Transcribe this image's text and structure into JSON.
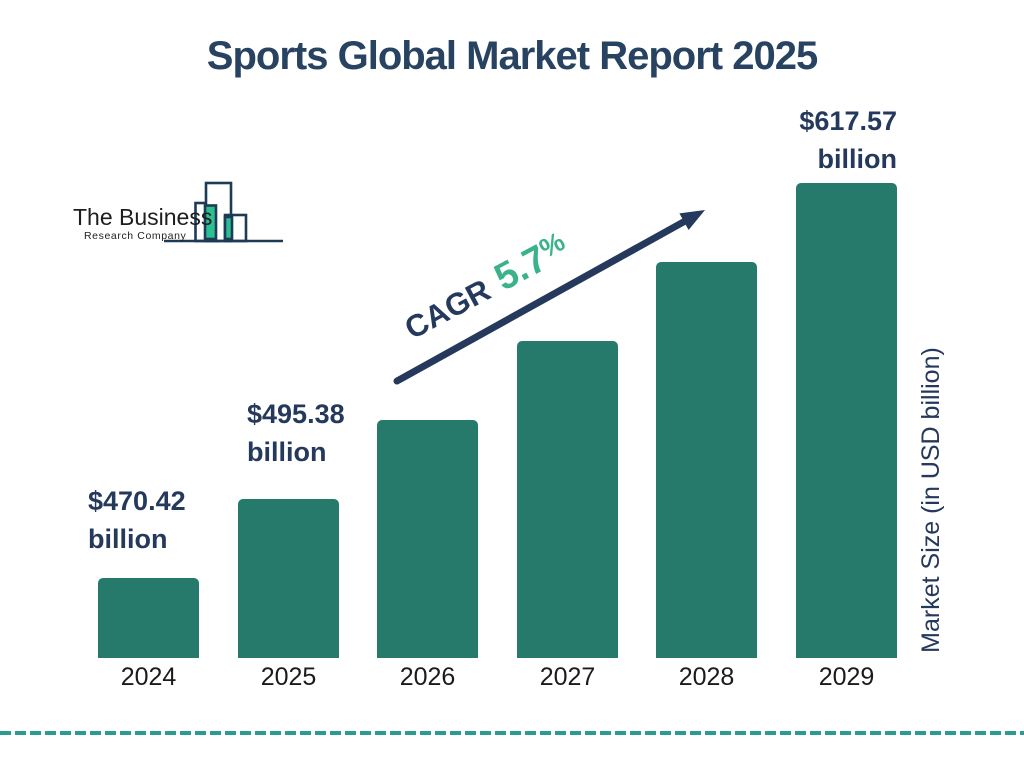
{
  "title": "Sports Global Market Report 2025",
  "logo": {
    "line1": "The Business",
    "line2": "Research Company"
  },
  "cagr": {
    "label": "CAGR",
    "value": "5.7",
    "suffix": "%"
  },
  "y_axis_label": "Market Size (in USD billion)",
  "value_labels": {
    "y2024": {
      "value": "$470.42",
      "unit": "billion"
    },
    "y2025": {
      "value": "$495.38",
      "unit": "billion"
    },
    "y2029": {
      "value": "$617.57",
      "unit": "billion"
    }
  },
  "colors": {
    "bar": "#267a6b",
    "navy_text": "#24395b",
    "title_navy": "#274361",
    "green_accent": "#3ab38b",
    "logo_green": "#2bc093",
    "dashed_rule_teal": "#2a9a93"
  },
  "chart_data": {
    "type": "bar",
    "categories": [
      "2024",
      "2025",
      "2026",
      "2027",
      "2028",
      "2029"
    ],
    "values": [
      470.42,
      495.38,
      523.62,
      553.46,
      585.01,
      617.57
    ],
    "labeled_points": [
      {
        "category": "2024",
        "label": "$470.42 billion"
      },
      {
        "category": "2025",
        "label": "$495.38 billion"
      },
      {
        "category": "2029",
        "label": "$617.57 billion"
      }
    ],
    "title": "Sports Global Market Report 2025",
    "xlabel": "",
    "ylabel": "Market Size (in USD billion)",
    "annotation": "CAGR 5.7%",
    "legend": false,
    "grid": false,
    "baseline_truncated": true,
    "notes": "values for 2026-2028 estimated from 5.7% CAGR; bars rendered with equal height steps"
  }
}
